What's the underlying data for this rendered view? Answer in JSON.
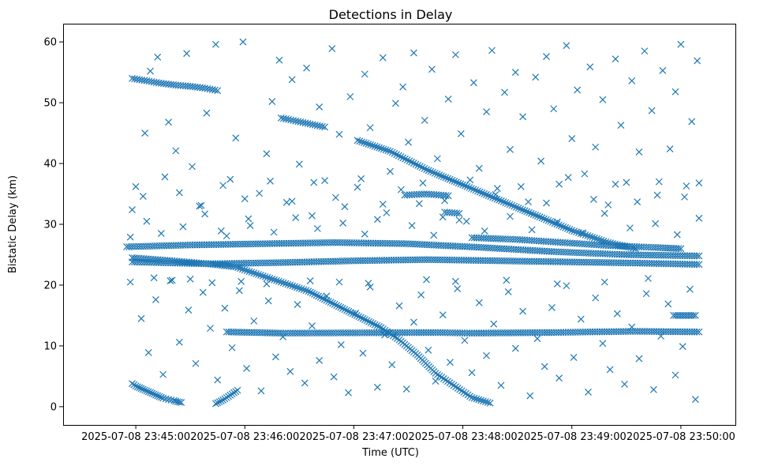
{
  "chart_data": {
    "type": "scatter",
    "title": "Detections in Delay",
    "xlabel": "Time (UTC)",
    "ylabel": "Bistatic Delay (km)",
    "marker": "x",
    "color": "#1f77b4",
    "x_unit": "seconds after 2025-07-08 23:45:00",
    "xlim": [
      -40,
      330
    ],
    "ylim": [
      -3,
      63
    ],
    "xticks": [
      {
        "value": 0,
        "label": "2025-07-08 23:45:00"
      },
      {
        "value": 60,
        "label": "2025-07-08 23:46:00"
      },
      {
        "value": 120,
        "label": "2025-07-08 23:47:00"
      },
      {
        "value": 180,
        "label": "2025-07-08 23:48:00"
      },
      {
        "value": 240,
        "label": "2025-07-08 23:49:00"
      },
      {
        "value": 300,
        "label": "2025-07-08 23:50:00"
      }
    ],
    "yticks": [
      0,
      10,
      20,
      30,
      40,
      50,
      60
    ],
    "tracks": [
      {
        "name": "early-low-descent",
        "points": [
          [
            -2,
            3.8
          ],
          [
            0,
            3.4
          ],
          [
            3,
            3.0
          ],
          [
            6,
            2.6
          ],
          [
            9,
            2.2
          ],
          [
            12,
            1.8
          ],
          [
            15,
            1.4
          ],
          [
            18,
            1.2
          ],
          [
            21,
            1.0
          ],
          [
            23,
            0.8
          ],
          [
            25,
            0.7
          ]
        ]
      },
      {
        "name": "early-low-rise",
        "points": [
          [
            44,
            0.5
          ],
          [
            46,
            0.8
          ],
          [
            48,
            1.1
          ],
          [
            50,
            1.5
          ],
          [
            52,
            1.9
          ],
          [
            54,
            2.3
          ],
          [
            56,
            2.7
          ]
        ]
      },
      {
        "name": "main-descent",
        "points": [
          [
            -2,
            24.5
          ],
          [
            20,
            24.0
          ],
          [
            40,
            23.5
          ],
          [
            55,
            23.0
          ],
          [
            65,
            22.0
          ],
          [
            75,
            21.0
          ],
          [
            85,
            20.0
          ],
          [
            95,
            19.0
          ],
          [
            105,
            17.5
          ],
          [
            115,
            16.0
          ],
          [
            125,
            14.5
          ],
          [
            135,
            13.0
          ],
          [
            145,
            11.0
          ],
          [
            155,
            8.5
          ],
          [
            165,
            5.5
          ],
          [
            175,
            3.5
          ],
          [
            185,
            1.5
          ],
          [
            195,
            0.6
          ]
        ]
      },
      {
        "name": "upper-descent",
        "points": [
          [
            122,
            43.8
          ],
          [
            140,
            42.0
          ],
          [
            160,
            39.0
          ],
          [
            180,
            36.5
          ],
          [
            200,
            34.0
          ],
          [
            220,
            31.5
          ],
          [
            240,
            29.0
          ],
          [
            260,
            27.0
          ],
          [
            275,
            26.0
          ]
        ]
      },
      {
        "name": "mid-upper-segment",
        "points": [
          [
            80,
            47.5
          ],
          [
            88,
            47.0
          ],
          [
            96,
            46.5
          ],
          [
            104,
            46.0
          ]
        ]
      },
      {
        "name": "top-left-segment",
        "points": [
          [
            -2,
            54.0
          ],
          [
            6,
            53.6
          ],
          [
            14,
            53.2
          ],
          [
            22,
            52.9
          ],
          [
            30,
            52.7
          ],
          [
            38,
            52.4
          ],
          [
            45,
            52.0
          ]
        ]
      },
      {
        "name": "band-26",
        "points": [
          [
            -5,
            26.3
          ],
          [
            30,
            26.6
          ],
          [
            70,
            26.8
          ],
          [
            110,
            27.0
          ],
          [
            150,
            26.8
          ],
          [
            190,
            26.2
          ],
          [
            230,
            25.5
          ],
          [
            270,
            25.0
          ],
          [
            310,
            24.8
          ]
        ]
      },
      {
        "name": "band-27-right",
        "points": [
          [
            185,
            27.8
          ],
          [
            210,
            27.5
          ],
          [
            235,
            27.0
          ],
          [
            260,
            26.5
          ],
          [
            285,
            26.2
          ],
          [
            300,
            26.0
          ]
        ]
      },
      {
        "name": "band-23",
        "points": [
          [
            -2,
            23.8
          ],
          [
            40,
            23.5
          ],
          [
            80,
            23.7
          ],
          [
            120,
            24.0
          ],
          [
            160,
            24.2
          ],
          [
            200,
            24.0
          ],
          [
            240,
            23.8
          ],
          [
            280,
            23.6
          ],
          [
            310,
            23.4
          ]
        ]
      },
      {
        "name": "band-12",
        "points": [
          [
            50,
            12.3
          ],
          [
            65,
            12.2
          ],
          [
            80,
            12.1
          ],
          [
            165,
            12.2
          ],
          [
            185,
            12.1
          ],
          [
            230,
            12.2
          ],
          [
            250,
            12.3
          ],
          [
            275,
            12.4
          ],
          [
            310,
            12.3
          ]
        ]
      },
      {
        "name": "band-15-right",
        "points": [
          [
            296,
            15.0
          ],
          [
            302,
            15.0
          ],
          [
            308,
            15.0
          ]
        ]
      },
      {
        "name": "band-35",
        "points": [
          [
            148,
            34.8
          ],
          [
            160,
            35.0
          ],
          [
            172,
            34.7
          ]
        ]
      },
      {
        "name": "band-32",
        "points": [
          [
            170,
            32.0
          ],
          [
            178,
            31.8
          ]
        ]
      }
    ],
    "scatter_points": [
      [
        0,
        36.2
      ],
      [
        5,
        45.0
      ],
      [
        8,
        55.2
      ],
      [
        12,
        57.5
      ],
      [
        18,
        46.8
      ],
      [
        22,
        42.1
      ],
      [
        28,
        58.1
      ],
      [
        31,
        39.5
      ],
      [
        35,
        33.0
      ],
      [
        39,
        48.3
      ],
      [
        44,
        59.6
      ],
      [
        47,
        28.9
      ],
      [
        52,
        37.4
      ],
      [
        55,
        44.2
      ],
      [
        59,
        60.0
      ],
      [
        63,
        29.8
      ],
      [
        68,
        35.1
      ],
      [
        72,
        41.6
      ],
      [
        75,
        50.2
      ],
      [
        79,
        57.0
      ],
      [
        83,
        33.6
      ],
      [
        86,
        53.8
      ],
      [
        90,
        39.9
      ],
      [
        94,
        55.7
      ],
      [
        97,
        31.4
      ],
      [
        101,
        49.3
      ],
      [
        104,
        37.2
      ],
      [
        108,
        58.9
      ],
      [
        112,
        44.8
      ],
      [
        115,
        32.9
      ],
      [
        118,
        51.0
      ],
      [
        122,
        36.1
      ],
      [
        126,
        54.7
      ],
      [
        129,
        45.9
      ],
      [
        133,
        30.8
      ],
      [
        136,
        57.4
      ],
      [
        140,
        38.7
      ],
      [
        143,
        49.9
      ],
      [
        147,
        52.6
      ],
      [
        150,
        43.5
      ],
      [
        153,
        58.2
      ],
      [
        156,
        33.4
      ],
      [
        159,
        47.1
      ],
      [
        163,
        55.5
      ],
      [
        166,
        40.8
      ],
      [
        169,
        31.2
      ],
      [
        172,
        50.6
      ],
      [
        176,
        57.9
      ],
      [
        179,
        44.9
      ],
      [
        182,
        30.5
      ],
      [
        186,
        53.3
      ],
      [
        189,
        39.2
      ],
      [
        193,
        48.5
      ],
      [
        196,
        58.6
      ],
      [
        199,
        35.9
      ],
      [
        203,
        51.7
      ],
      [
        206,
        42.3
      ],
      [
        209,
        55.0
      ],
      [
        213,
        47.7
      ],
      [
        216,
        33.7
      ],
      [
        220,
        54.2
      ],
      [
        223,
        40.4
      ],
      [
        226,
        57.6
      ],
      [
        230,
        49.0
      ],
      [
        233,
        36.6
      ],
      [
        237,
        59.4
      ],
      [
        240,
        44.1
      ],
      [
        243,
        52.1
      ],
      [
        247,
        38.3
      ],
      [
        250,
        55.9
      ],
      [
        253,
        42.7
      ],
      [
        257,
        50.5
      ],
      [
        260,
        33.2
      ],
      [
        264,
        57.2
      ],
      [
        267,
        46.3
      ],
      [
        270,
        36.9
      ],
      [
        273,
        53.6
      ],
      [
        277,
        41.9
      ],
      [
        280,
        58.5
      ],
      [
        284,
        48.7
      ],
      [
        287,
        34.8
      ],
      [
        290,
        55.3
      ],
      [
        294,
        42.4
      ],
      [
        297,
        51.8
      ],
      [
        300,
        59.6
      ],
      [
        303,
        36.3
      ],
      [
        306,
        46.9
      ],
      [
        309,
        56.9
      ],
      [
        3,
        14.5
      ],
      [
        7,
        8.9
      ],
      [
        11,
        17.6
      ],
      [
        15,
        5.3
      ],
      [
        19,
        20.7
      ],
      [
        24,
        10.6
      ],
      [
        29,
        15.9
      ],
      [
        33,
        7.1
      ],
      [
        37,
        18.8
      ],
      [
        41,
        12.9
      ],
      [
        45,
        4.4
      ],
      [
        49,
        16.2
      ],
      [
        53,
        9.7
      ],
      [
        57,
        19.1
      ],
      [
        61,
        6.3
      ],
      [
        65,
        14.1
      ],
      [
        69,
        2.6
      ],
      [
        73,
        17.4
      ],
      [
        77,
        8.2
      ],
      [
        81,
        11.5
      ],
      [
        85,
        5.8
      ],
      [
        89,
        16.8
      ],
      [
        93,
        3.9
      ],
      [
        97,
        13.3
      ],
      [
        101,
        7.6
      ],
      [
        105,
        18.2
      ],
      [
        109,
        4.9
      ],
      [
        113,
        10.2
      ],
      [
        117,
        2.3
      ],
      [
        121,
        15.4
      ],
      [
        125,
        8.8
      ],
      [
        129,
        19.7
      ],
      [
        133,
        3.2
      ],
      [
        137,
        11.8
      ],
      [
        141,
        6.9
      ],
      [
        145,
        16.6
      ],
      [
        149,
        2.9
      ],
      [
        153,
        13.9
      ],
      [
        157,
        18.4
      ],
      [
        161,
        9.3
      ],
      [
        165,
        4.2
      ],
      [
        169,
        15.1
      ],
      [
        173,
        7.3
      ],
      [
        177,
        19.4
      ],
      [
        181,
        10.9
      ],
      [
        185,
        5.6
      ],
      [
        189,
        17.1
      ],
      [
        193,
        8.4
      ],
      [
        197,
        13.6
      ],
      [
        201,
        3.5
      ],
      [
        205,
        18.9
      ],
      [
        209,
        9.6
      ],
      [
        213,
        15.7
      ],
      [
        217,
        1.8
      ],
      [
        221,
        11.2
      ],
      [
        225,
        6.6
      ],
      [
        229,
        16.3
      ],
      [
        233,
        4.7
      ],
      [
        237,
        19.9
      ],
      [
        241,
        8.1
      ],
      [
        245,
        14.4
      ],
      [
        249,
        2.4
      ],
      [
        253,
        17.9
      ],
      [
        257,
        10.4
      ],
      [
        261,
        6.1
      ],
      [
        265,
        15.3
      ],
      [
        269,
        3.7
      ],
      [
        273,
        13.1
      ],
      [
        277,
        7.9
      ],
      [
        281,
        18.6
      ],
      [
        285,
        2.8
      ],
      [
        289,
        11.6
      ],
      [
        293,
        16.9
      ],
      [
        297,
        5.2
      ],
      [
        301,
        9.9
      ],
      [
        305,
        19.3
      ],
      [
        308,
        1.2
      ],
      [
        -3,
        20.5
      ],
      [
        10,
        21.2
      ],
      [
        20,
        20.8
      ],
      [
        30,
        21.0
      ],
      [
        42,
        20.4
      ],
      [
        58,
        20.6
      ],
      [
        72,
        20.2
      ],
      [
        96,
        20.7
      ],
      [
        112,
        20.5
      ],
      [
        128,
        20.3
      ],
      [
        160,
        20.9
      ],
      [
        176,
        20.6
      ],
      [
        204,
        20.8
      ],
      [
        232,
        20.2
      ],
      [
        258,
        20.5
      ],
      [
        282,
        21.1
      ],
      [
        -3,
        27.9
      ],
      [
        6,
        30.5
      ],
      [
        14,
        28.5
      ],
      [
        26,
        29.6
      ],
      [
        38,
        31.7
      ],
      [
        50,
        28.1
      ],
      [
        62,
        30.9
      ],
      [
        76,
        28.7
      ],
      [
        88,
        31.1
      ],
      [
        100,
        29.3
      ],
      [
        114,
        30.2
      ],
      [
        126,
        28.4
      ],
      [
        138,
        31.9
      ],
      [
        152,
        29.8
      ],
      [
        164,
        28.2
      ],
      [
        178,
        30.7
      ],
      [
        192,
        28.9
      ],
      [
        206,
        31.3
      ],
      [
        218,
        29.1
      ],
      [
        232,
        30.4
      ],
      [
        246,
        28.6
      ],
      [
        258,
        31.8
      ],
      [
        272,
        29.4
      ],
      [
        286,
        30.1
      ],
      [
        298,
        28.3
      ],
      [
        310,
        31.0
      ],
      [
        -2,
        32.4
      ],
      [
        4,
        34.6
      ],
      [
        16,
        37.8
      ],
      [
        24,
        35.2
      ],
      [
        36,
        33.1
      ],
      [
        48,
        36.4
      ],
      [
        60,
        34.2
      ],
      [
        74,
        37.1
      ],
      [
        86,
        33.8
      ],
      [
        98,
        36.9
      ],
      [
        110,
        34.4
      ],
      [
        124,
        37.5
      ],
      [
        136,
        33.3
      ],
      [
        146,
        35.7
      ],
      [
        158,
        36.8
      ],
      [
        170,
        33.9
      ],
      [
        184,
        37.3
      ],
      [
        198,
        34.9
      ],
      [
        212,
        36.2
      ],
      [
        226,
        33.5
      ],
      [
        238,
        37.7
      ],
      [
        252,
        34.1
      ],
      [
        264,
        36.6
      ],
      [
        276,
        33.7
      ],
      [
        288,
        37.0
      ],
      [
        302,
        34.5
      ],
      [
        310,
        36.8
      ]
    ]
  }
}
